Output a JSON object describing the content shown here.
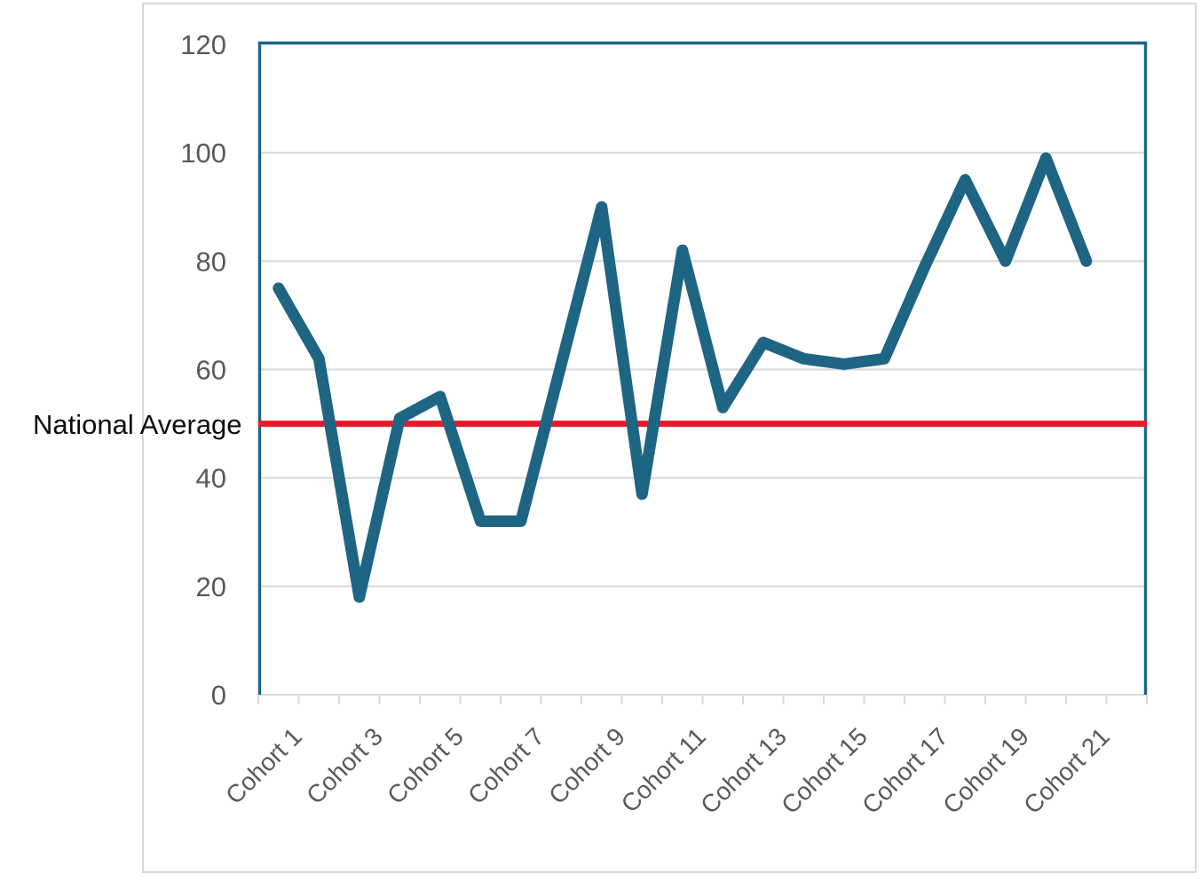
{
  "chart_data": {
    "type": "line",
    "title": "",
    "n_points": 21,
    "categories_visible": [
      "Cohort 1",
      "Cohort 3",
      "Cohort 5",
      "Cohort 7",
      "Cohort 9",
      "Cohort 11",
      "Cohort 13",
      "Cohort 15",
      "Cohort 17",
      "Cohort 19",
      "Cohort 21"
    ],
    "label_every_nth_category": 2,
    "values": [
      75,
      62,
      18,
      51,
      55,
      32,
      32,
      61,
      90,
      37,
      82,
      53,
      65,
      62,
      61,
      62,
      79,
      95,
      80,
      99,
      80
    ],
    "series_color": "#1e6584",
    "reference_line": {
      "label": "National Average",
      "value": 50,
      "color": "#e8192c"
    },
    "ylim": [
      0,
      120
    ],
    "y_ticks": [
      0,
      20,
      40,
      60,
      80,
      100,
      120
    ],
    "grid": "horizontal",
    "legend": "none",
    "colors": {
      "gridline": "#d9d9d9",
      "axis_line": "#d9d9d9",
      "tick_label": "#595959",
      "plot_border": "#1e6584",
      "card_border": "#d8d8d8",
      "card_background": "#ffffff",
      "reference_label_text": "#0d0d0d"
    }
  }
}
